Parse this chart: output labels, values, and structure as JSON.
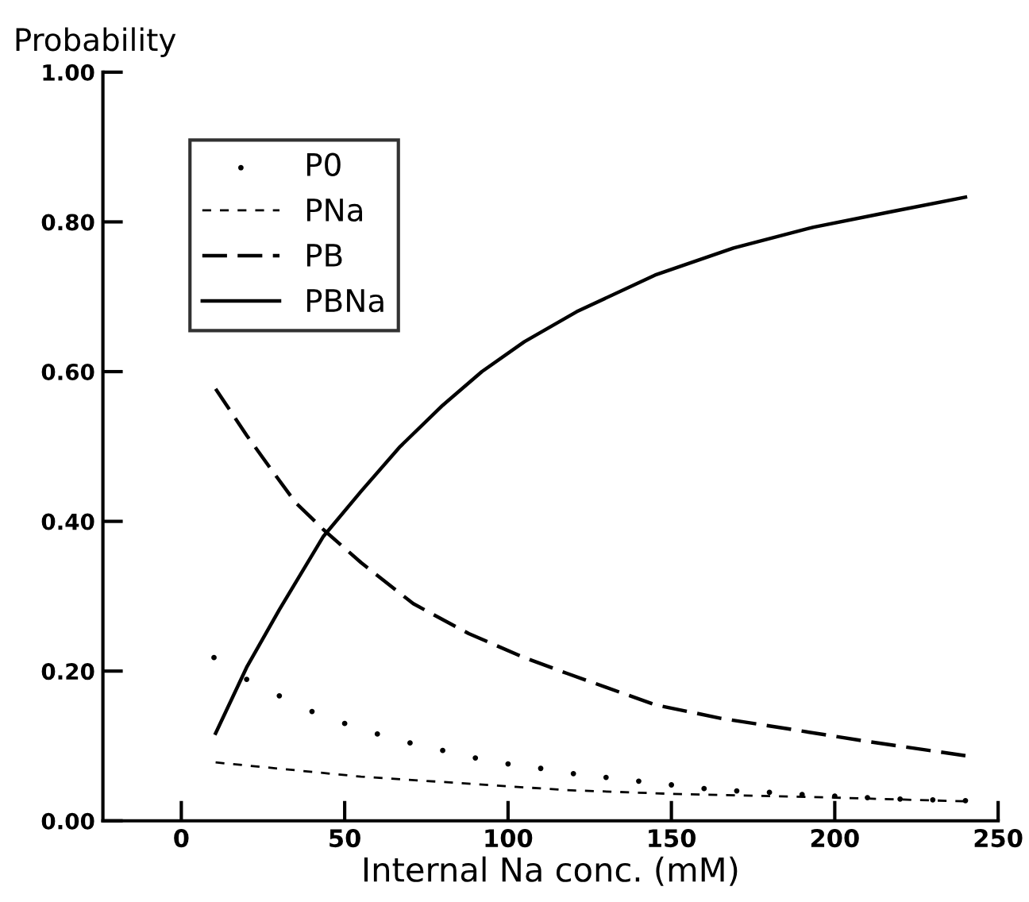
{
  "chart_data": {
    "type": "line",
    "ylabel": "Probability",
    "xlabel": "Internal Na conc. (mM)",
    "xlim": [
      -24,
      250
    ],
    "xticks": [
      0,
      50,
      100,
      150,
      200,
      250
    ],
    "ylim": [
      0,
      1
    ],
    "yticks": [
      {
        "value": 0,
        "label": "0.00"
      },
      {
        "value": 0.2,
        "label": "0.20"
      },
      {
        "value": 0.4,
        "label": "0.40"
      },
      {
        "value": 0.6,
        "label": "0.60"
      },
      {
        "value": 0.8,
        "label": "0.80"
      },
      {
        "value": 1,
        "label": "1.00"
      }
    ],
    "grid": false,
    "legend": "top left",
    "series": [
      {
        "name": "P0",
        "type": "scatter",
        "marker": "circle",
        "color": "#000000",
        "x": [
          10,
          20,
          30,
          40,
          50,
          60,
          70,
          80,
          90,
          100,
          110,
          120,
          130,
          140,
          150,
          160,
          170,
          180,
          190,
          200,
          210,
          220,
          230,
          240
        ],
        "values": [
          0.218,
          0.189,
          0.167,
          0.146,
          0.13,
          0.116,
          0.104,
          0.094,
          0.084,
          0.076,
          0.07,
          0.063,
          0.058,
          0.053,
          0.048,
          0.043,
          0.04,
          0.038,
          0.035,
          0.033,
          0.031,
          0.029,
          0.028,
          0.027
        ]
      },
      {
        "name": "PNa",
        "line_style": "dashed",
        "color": "#000000",
        "x": [
          10.5,
          55,
          118,
          150,
          200,
          240
        ],
        "values": [
          0.078,
          0.059,
          0.041,
          0.036,
          0.031,
          0.026
        ]
      },
      {
        "name": "PB",
        "line_style": "dashed",
        "color": "#000000",
        "x": [
          10.5,
          20,
          27.4,
          35,
          43.5,
          55,
          71,
          88,
          105,
          118,
          145,
          165,
          185.5,
          210,
          240
        ],
        "values": [
          0.577,
          0.515,
          0.47,
          0.425,
          0.389,
          0.345,
          0.29,
          0.25,
          0.218,
          0.197,
          0.155,
          0.137,
          0.123,
          0.106,
          0.087
        ]
      },
      {
        "name": "PBNa",
        "line_style": "solid",
        "color": "#000000",
        "x": [
          10.5,
          20,
          30,
          43.5,
          55,
          67,
          80,
          92,
          105,
          121,
          145,
          169,
          193.5,
          217.7,
          240
        ],
        "values": [
          0.117,
          0.205,
          0.282,
          0.38,
          0.44,
          0.5,
          0.555,
          0.6,
          0.64,
          0.68,
          0.729,
          0.765,
          0.793,
          0.814,
          0.833
        ]
      }
    ]
  }
}
